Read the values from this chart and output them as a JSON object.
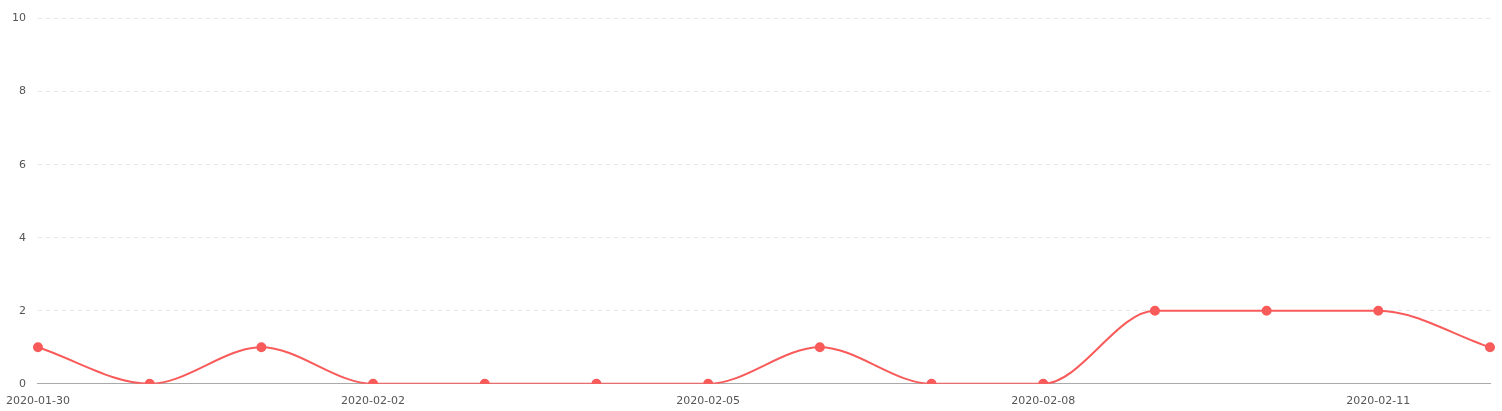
{
  "chart_data": {
    "type": "line",
    "categories": [
      "2020-01-30",
      null,
      null,
      "2020-02-02",
      null,
      null,
      "2020-02-05",
      null,
      null,
      "2020-02-08",
      null,
      null,
      "2020-02-11",
      null
    ],
    "series": [
      {
        "color": "#f95b5b",
        "values": [
          1,
          0,
          1,
          0,
          0,
          0,
          0,
          1,
          0,
          0,
          2,
          2,
          2,
          1
        ]
      }
    ],
    "ylim": [
      0,
      10
    ],
    "yticks": [
      0,
      2,
      4,
      6,
      8,
      10
    ],
    "grid": "y",
    "legend": false,
    "marker": "circle",
    "line_style": "solid"
  }
}
